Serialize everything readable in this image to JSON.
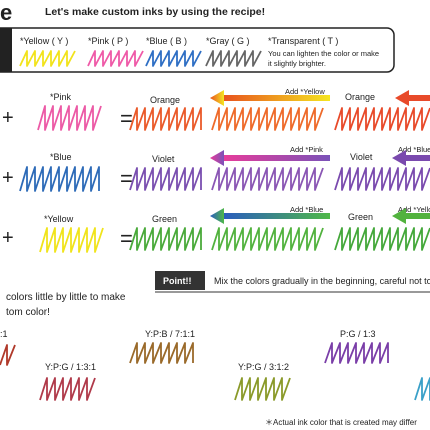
{
  "header": {
    "title_fragment": "e",
    "tagline": "Let's make custom inks by using the recipe!"
  },
  "base_inks": [
    "*Yellow ( Y )",
    "*Pink ( P )",
    "*Blue ( B )",
    "*Gray ( G )",
    "*Transparent ( T )"
  ],
  "transparent_note": [
    "You can lighten the color or make",
    "it slightly brighter."
  ],
  "mixes": [
    {
      "ingredient": "*Pink",
      "result": "Orange",
      "add_label": "Add *Yellow",
      "result_repeat": "Orange"
    },
    {
      "ingredient": "*Blue",
      "result": "Violet",
      "add_label": "Add *Pink",
      "result_repeat": "Violet",
      "next_add_label": "Add *Blue"
    },
    {
      "ingredient": "*Yellow",
      "result": "Green",
      "add_label": "Add *Blue",
      "result_repeat": "Green",
      "next_add_label": "Add *Yellow"
    }
  ],
  "point": {
    "badge": "Point!!",
    "text": "Mix the colors gradually in the beginning, careful not to"
  },
  "tip": [
    "colors little by little to make",
    "tom color!"
  ],
  "recipes": [
    ":1",
    "Y:P:B / 7:1:1",
    "P:G / 1:3",
    "Y:P:G / 1:3:1",
    "Y:P:G / 3:1:2"
  ],
  "footnote": "＊Actual ink color that is created may differ"
}
